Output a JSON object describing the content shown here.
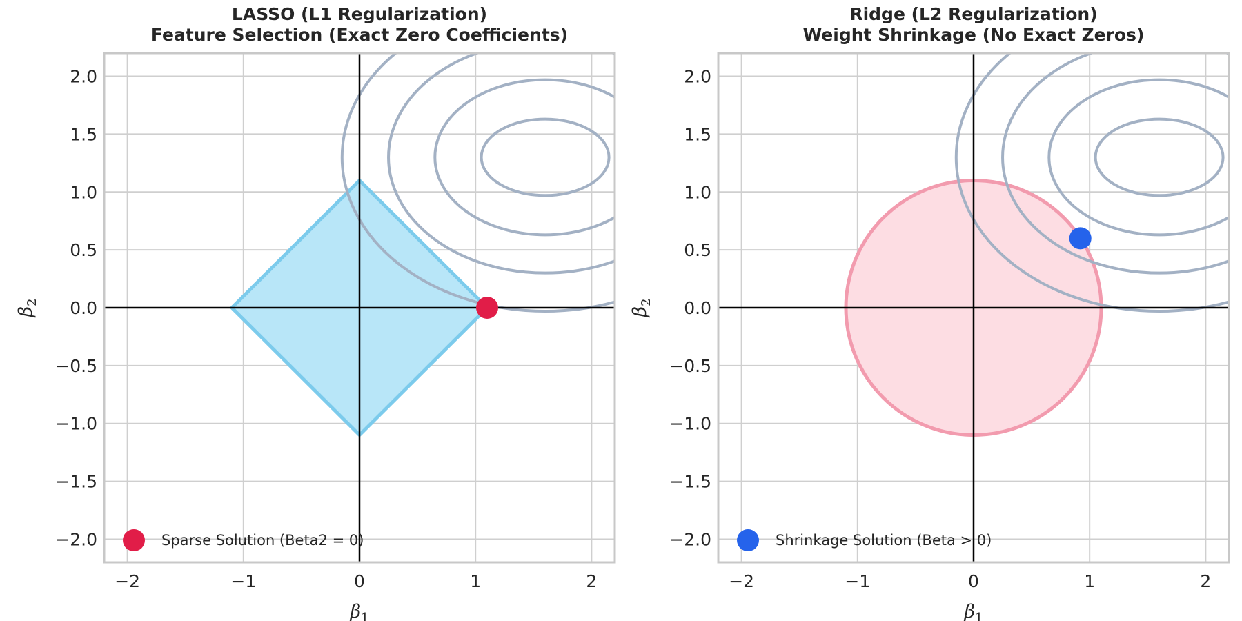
{
  "chart_data": [
    {
      "type": "line",
      "title_lines": [
        "LASSO (L1 Regularization)",
        "Feature Selection (Exact Zero Coefficients)"
      ],
      "xlabel": "β1",
      "ylabel": "β2",
      "xlim": [
        -2.2,
        2.2
      ],
      "ylim": [
        -2.2,
        2.2
      ],
      "xticks": [
        -2,
        -1,
        0,
        1,
        2
      ],
      "yticks": [
        2.0,
        1.5,
        1.0,
        0.5,
        0.0,
        -0.5,
        -1.0,
        -1.5,
        -2.0
      ],
      "xtick_labels": [
        "−2",
        "−1",
        "0",
        "1",
        "2"
      ],
      "ytick_labels": [
        "2.0",
        "1.5",
        "1.0",
        "0.5",
        "0.0",
        "−0.5",
        "−1.0",
        "−1.5",
        "−2.0"
      ],
      "grid": true,
      "constraint": {
        "shape": "diamond",
        "radius": 1.1,
        "fill": "#b8e6f8",
        "stroke": "#7ccbec"
      },
      "contours": {
        "center": [
          1.6,
          1.3
        ],
        "semi_axes": [
          [
            0.55,
            0.33
          ],
          [
            0.95,
            0.67
          ],
          [
            1.35,
            1.0
          ],
          [
            1.75,
            1.33
          ]
        ],
        "color": "#a3b1c4"
      },
      "solution": {
        "x": 1.1,
        "y": 0.0,
        "color": "#e11d48",
        "label": "Sparse Solution (Beta2 = 0)"
      },
      "legend_position": "lower-left"
    },
    {
      "type": "line",
      "title_lines": [
        "Ridge (L2 Regularization)",
        "Weight Shrinkage (No Exact Zeros)"
      ],
      "xlabel": "β1",
      "ylabel": "β2",
      "xlim": [
        -2.2,
        2.2
      ],
      "ylim": [
        -2.2,
        2.2
      ],
      "xticks": [
        -2,
        -1,
        0,
        1,
        2
      ],
      "yticks": [
        2.0,
        1.5,
        1.0,
        0.5,
        0.0,
        -0.5,
        -1.0,
        -1.5,
        -2.0
      ],
      "xtick_labels": [
        "−2",
        "−1",
        "0",
        "1",
        "2"
      ],
      "ytick_labels": [
        "2.0",
        "1.5",
        "1.0",
        "0.5",
        "0.0",
        "−0.5",
        "−1.0",
        "−1.5",
        "−2.0"
      ],
      "grid": true,
      "constraint": {
        "shape": "circle",
        "radius": 1.1,
        "fill": "#fddde3",
        "stroke": "#f29bae"
      },
      "contours": {
        "center": [
          1.6,
          1.3
        ],
        "semi_axes": [
          [
            0.55,
            0.33
          ],
          [
            0.95,
            0.67
          ],
          [
            1.35,
            1.0
          ],
          [
            1.75,
            1.33
          ]
        ],
        "color": "#a3b1c4"
      },
      "solution": {
        "x": 0.92,
        "y": 0.6,
        "color": "#2563eb",
        "label": "Shrinkage Solution (Beta > 0)"
      },
      "legend_position": "lower-left"
    }
  ]
}
